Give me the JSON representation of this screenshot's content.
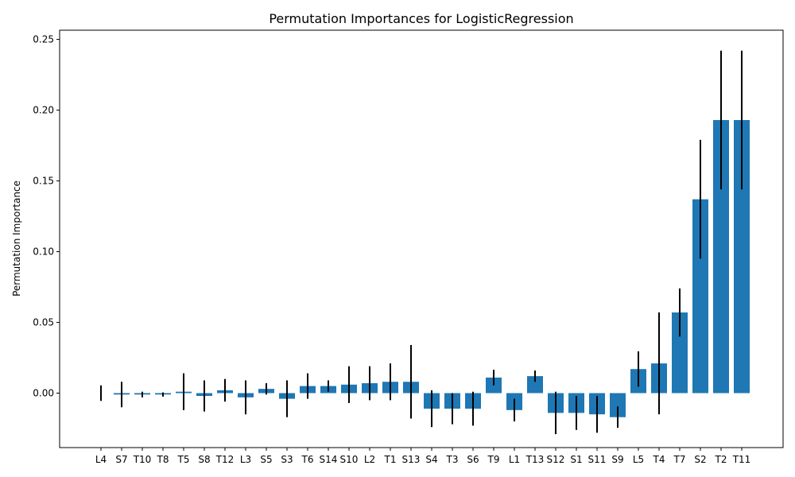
{
  "chart_data": {
    "type": "bar",
    "title": "Permutation Importances for LogisticRegression",
    "xlabel": "",
    "ylabel": "Permutation Importance",
    "ylim": [
      -0.0385,
      0.2565
    ],
    "yticks": [
      0.0,
      0.05,
      0.1,
      0.15,
      0.2,
      0.25
    ],
    "ytick_labels": [
      "0.00",
      "0.05",
      "0.10",
      "0.15",
      "0.20",
      "0.25"
    ],
    "bar_color": "#1f77b4",
    "error_color": "#000000",
    "categories": [
      "L4",
      "S7",
      "T10",
      "T8",
      "T5",
      "S8",
      "T12",
      "L3",
      "S5",
      "S3",
      "T6",
      "S14",
      "S10",
      "L2",
      "T1",
      "S13",
      "S4",
      "T3",
      "S6",
      "T9",
      "L1",
      "T13",
      "S12",
      "S1",
      "S11",
      "S9",
      "L5",
      "T4",
      "T7",
      "S2",
      "T2",
      "T11"
    ],
    "values": [
      0.0,
      -0.001,
      -0.001,
      -0.001,
      0.001,
      -0.002,
      0.002,
      -0.003,
      0.003,
      -0.004,
      0.005,
      0.005,
      0.006,
      0.007,
      0.008,
      0.008,
      -0.011,
      -0.011,
      -0.011,
      0.011,
      -0.012,
      0.012,
      -0.014,
      -0.014,
      -0.015,
      -0.017,
      0.017,
      0.021,
      0.057,
      0.137,
      0.193,
      0.193
    ],
    "errors": [
      0.0055,
      0.009,
      0.002,
      0.0015,
      0.013,
      0.011,
      0.008,
      0.012,
      0.004,
      0.013,
      0.009,
      0.004,
      0.013,
      0.012,
      0.013,
      0.026,
      0.013,
      0.011,
      0.012,
      0.0055,
      0.008,
      0.004,
      0.015,
      0.012,
      0.013,
      0.0075,
      0.0125,
      0.036,
      0.017,
      0.042,
      0.049,
      0.049
    ]
  }
}
